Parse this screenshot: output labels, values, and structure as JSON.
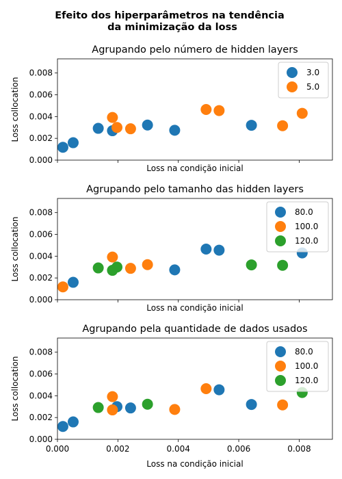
{
  "figure": {
    "suptitle_line1": "Efeito dos hiperparâmetros na tendência",
    "suptitle_line2": "da minimização da loss"
  },
  "colors": {
    "blue": "#1f77b4",
    "orange": "#ff7f0e",
    "green": "#2ca02c"
  },
  "chart_data": [
    {
      "type": "scatter",
      "title": "Agrupando pelo número de hidden layers",
      "xlabel": "Loss na condição inicial",
      "ylabel": "Loss collocation",
      "xlim": [
        0.0,
        0.0091
      ],
      "ylim": [
        0.0,
        0.0093
      ],
      "xticks": [
        0.0,
        0.002,
        0.004,
        0.006,
        0.008
      ],
      "yticks": [
        "0.000",
        "0.002",
        "0.004",
        "0.006",
        "0.008"
      ],
      "legend": "top-right",
      "series": [
        {
          "name": "3.0",
          "color": "#1f77b4",
          "x": [
            0.00018,
            0.00052,
            0.00135,
            0.00182,
            0.00298,
            0.00388,
            0.00642
          ],
          "y": [
            0.00118,
            0.0016,
            0.00292,
            0.0027,
            0.00322,
            0.00274,
            0.0032
          ]
        },
        {
          "name": "5.0",
          "color": "#ff7f0e",
          "x": [
            0.00182,
            0.00197,
            0.00242,
            0.00492,
            0.00535,
            0.00745,
            0.0081
          ],
          "y": [
            0.00392,
            0.003,
            0.00288,
            0.00465,
            0.00455,
            0.00316,
            0.0043
          ]
        }
      ]
    },
    {
      "type": "scatter",
      "title": "Agrupando pelo tamanho das hidden layers",
      "xlabel": "Loss na condição inicial",
      "ylabel": "Loss collocation",
      "xlim": [
        0.0,
        0.0091
      ],
      "ylim": [
        0.0,
        0.0093
      ],
      "xticks": [
        0.0,
        0.002,
        0.004,
        0.006,
        0.008
      ],
      "yticks": [
        "0.000",
        "0.002",
        "0.004",
        "0.006",
        "0.008"
      ],
      "legend": "top-right",
      "series": [
        {
          "name": "80.0",
          "color": "#1f77b4",
          "x": [
            0.00052,
            0.00388,
            0.00492,
            0.00535,
            0.0081
          ],
          "y": [
            0.0016,
            0.00274,
            0.00465,
            0.00455,
            0.0043
          ]
        },
        {
          "name": "100.0",
          "color": "#ff7f0e",
          "x": [
            0.00018,
            0.00182,
            0.00242,
            0.00298
          ],
          "y": [
            0.00118,
            0.00392,
            0.00288,
            0.00322
          ]
        },
        {
          "name": "120.0",
          "color": "#2ca02c",
          "x": [
            0.00135,
            0.00182,
            0.00197,
            0.00642,
            0.00745
          ],
          "y": [
            0.00292,
            0.0027,
            0.003,
            0.0032,
            0.00316
          ]
        }
      ]
    },
    {
      "type": "scatter",
      "title": "Agrupando pela quantidade de dados usados",
      "xlabel": "Loss na condição inicial",
      "ylabel": "Loss collocation",
      "xlim": [
        0.0,
        0.0091
      ],
      "ylim": [
        0.0,
        0.0093
      ],
      "xticks": [
        "0.000",
        "0.002",
        "0.004",
        "0.006",
        "0.008"
      ],
      "yticks": [
        "0.000",
        "0.002",
        "0.004",
        "0.006",
        "0.008"
      ],
      "legend": "top-right",
      "series": [
        {
          "name": "80.0",
          "color": "#1f77b4",
          "x": [
            0.00018,
            0.00052,
            0.00197,
            0.00242,
            0.00535,
            0.00642
          ],
          "y": [
            0.00118,
            0.0016,
            0.003,
            0.00288,
            0.00455,
            0.0032
          ]
        },
        {
          "name": "100.0",
          "color": "#ff7f0e",
          "x": [
            0.00182,
            0.00182,
            0.00388,
            0.00492,
            0.00745
          ],
          "y": [
            0.00392,
            0.0027,
            0.00274,
            0.00465,
            0.00316
          ]
        },
        {
          "name": "120.0",
          "color": "#2ca02c",
          "x": [
            0.00135,
            0.00298,
            0.0081
          ],
          "y": [
            0.00292,
            0.00322,
            0.0043
          ]
        }
      ]
    }
  ]
}
